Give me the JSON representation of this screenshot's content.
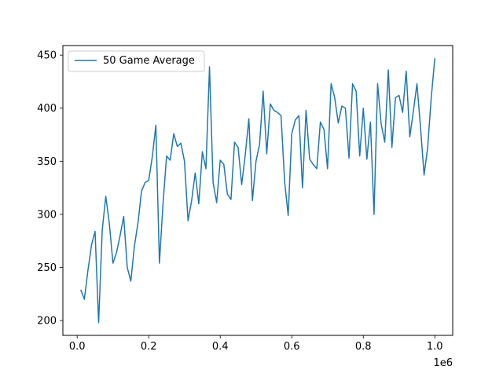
{
  "chart_data": {
    "type": "line",
    "title": "",
    "xlabel": "",
    "ylabel": "",
    "x_offset_label": "1e6",
    "xlim": [
      -0.04,
      1.05
    ],
    "ylim": [
      186,
      459
    ],
    "xticks": [
      0.0,
      0.2,
      0.4,
      0.6,
      0.8,
      1.0
    ],
    "xtick_labels": [
      "0.0",
      "0.2",
      "0.4",
      "0.6",
      "0.8",
      "1.0"
    ],
    "yticks": [
      200,
      250,
      300,
      350,
      400,
      450
    ],
    "ytick_labels": [
      "200",
      "250",
      "300",
      "350",
      "400",
      "450"
    ],
    "grid": false,
    "legend_position": "upper left",
    "series": [
      {
        "name": "50 Game Average",
        "color": "#1f77b4",
        "x": [
          0.01,
          0.02,
          0.03,
          0.04,
          0.05,
          0.06,
          0.07,
          0.08,
          0.09,
          0.1,
          0.11,
          0.12,
          0.13,
          0.14,
          0.15,
          0.16,
          0.17,
          0.18,
          0.19,
          0.2,
          0.21,
          0.22,
          0.23,
          0.24,
          0.25,
          0.26,
          0.27,
          0.28,
          0.29,
          0.3,
          0.31,
          0.32,
          0.33,
          0.34,
          0.35,
          0.36,
          0.37,
          0.38,
          0.39,
          0.4,
          0.41,
          0.42,
          0.43,
          0.44,
          0.45,
          0.46,
          0.47,
          0.48,
          0.49,
          0.5,
          0.51,
          0.52,
          0.53,
          0.54,
          0.55,
          0.56,
          0.57,
          0.58,
          0.59,
          0.6,
          0.61,
          0.62,
          0.63,
          0.64,
          0.65,
          0.66,
          0.67,
          0.68,
          0.69,
          0.7,
          0.71,
          0.72,
          0.73,
          0.74,
          0.75,
          0.76,
          0.77,
          0.78,
          0.79,
          0.8,
          0.81,
          0.82,
          0.83,
          0.84,
          0.85,
          0.86,
          0.87,
          0.88,
          0.89,
          0.9,
          0.91,
          0.92,
          0.93,
          0.94,
          0.95,
          0.96,
          0.97,
          0.98,
          0.99,
          1.0
        ],
        "y": [
          229,
          220,
          247,
          271,
          284,
          198,
          285,
          317,
          291,
          254,
          264,
          280,
          298,
          250,
          237,
          270,
          292,
          322,
          330,
          332,
          354,
          384,
          254,
          310,
          355,
          351,
          376,
          364,
          367,
          350,
          294,
          313,
          339,
          310,
          359,
          343,
          439,
          330,
          311,
          351,
          347,
          319,
          314,
          368,
          363,
          328,
          356,
          390,
          313,
          350,
          366,
          416,
          357,
          404,
          398,
          396,
          393,
          331,
          299,
          376,
          389,
          393,
          325,
          398,
          352,
          347,
          343,
          387,
          380,
          343,
          423,
          410,
          386,
          402,
          400,
          353,
          423,
          416,
          355,
          400,
          352,
          387,
          300,
          423,
          385,
          368,
          436,
          363,
          410,
          412,
          396,
          435,
          373,
          397,
          423,
          382,
          337,
          363,
          410,
          447
        ]
      }
    ]
  }
}
